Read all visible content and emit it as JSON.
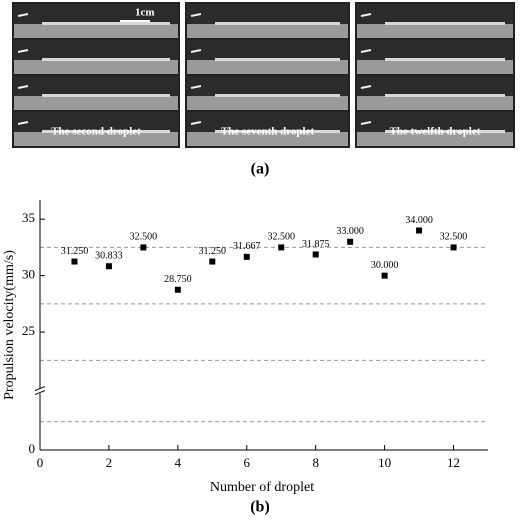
{
  "panel_a": {
    "scale_bar": "1cm",
    "column_labels": [
      "The second droplet",
      "The seventh droplet",
      "The twelfth droplet"
    ],
    "caption": "(a)"
  },
  "chart_data": {
    "type": "scatter",
    "x": [
      1,
      2,
      3,
      4,
      5,
      6,
      7,
      8,
      9,
      10,
      11,
      12
    ],
    "values": [
      31.25,
      30.833,
      32.5,
      28.75,
      31.25,
      31.667,
      32.5,
      31.875,
      33,
      30,
      34,
      32.5
    ],
    "value_labels": [
      "31.250",
      "30.833",
      "32.500",
      "28.750",
      "31.250",
      "31.667",
      "32.500",
      "31.875",
      "33.000",
      "30.000",
      "34.000",
      "32.500"
    ],
    "color": "#000000",
    "xlim": [
      0,
      13
    ],
    "xticks": [
      0,
      2,
      4,
      6,
      8,
      10,
      12
    ],
    "ylim": [
      0,
      36.7
    ],
    "ybreak": [
      5,
      20
    ],
    "yticks": [
      0,
      25,
      30,
      35
    ],
    "grid_lines": [
      2.5,
      22.5,
      27.5,
      32.5
    ],
    "xlabel": "Number of droplet",
    "ylabel": "Propulsion velocity(mm/s)",
    "caption": "(b)"
  }
}
